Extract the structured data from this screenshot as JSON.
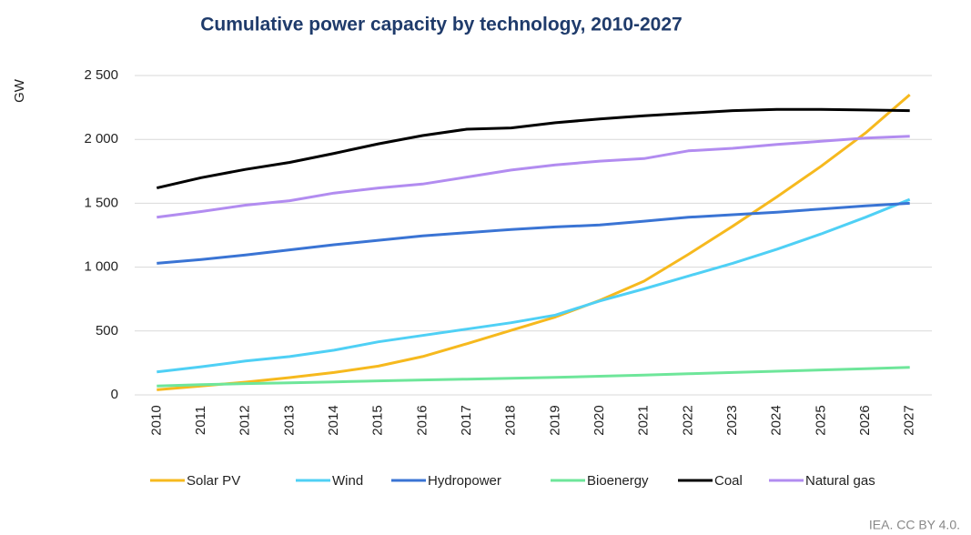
{
  "chart_data": {
    "type": "line",
    "title": "Cumulative power capacity by technology, 2010-2027",
    "y_label": "GW",
    "source": "IEA. CC BY 4.0.",
    "categories": [
      "2010",
      "2011",
      "2012",
      "2013",
      "2014",
      "2015",
      "2016",
      "2017",
      "2018",
      "2019",
      "2020",
      "2021",
      "2022",
      "2023",
      "2024",
      "2025",
      "2026",
      "2027"
    ],
    "ylim": [
      0,
      2500
    ],
    "yticks": [
      0,
      500,
      {
        "value": 1000,
        "label": "1 000"
      },
      {
        "value": 1500,
        "label": "1 500"
      },
      {
        "value": 2000,
        "label": "2 000"
      },
      {
        "value": 2500,
        "label": "2 500"
      }
    ],
    "grid": true,
    "legend": "bottom",
    "series": [
      {
        "name": "Solar PV",
        "color": "#f6b91e",
        "values": [
          40,
          70,
          100,
          135,
          175,
          225,
          300,
          400,
          505,
          610,
          740,
          890,
          1100,
          1320,
          1550,
          1790,
          2050,
          2350
        ]
      },
      {
        "name": "Wind",
        "color": "#4fd0f5",
        "values": [
          180,
          220,
          265,
          300,
          350,
          415,
          465,
          515,
          565,
          625,
          735,
          830,
          930,
          1030,
          1140,
          1260,
          1390,
          1530
        ]
      },
      {
        "name": "Hydropower",
        "color": "#3a74d4",
        "values": [
          1030,
          1060,
          1095,
          1135,
          1175,
          1210,
          1245,
          1270,
          1295,
          1315,
          1330,
          1360,
          1390,
          1410,
          1430,
          1455,
          1480,
          1500
        ]
      },
      {
        "name": "Bioenergy",
        "color": "#6ee69a",
        "values": [
          70,
          80,
          88,
          95,
          102,
          110,
          117,
          123,
          130,
          137,
          146,
          155,
          165,
          175,
          185,
          195,
          205,
          215
        ]
      },
      {
        "name": "Coal",
        "color": "#000000",
        "values": [
          1620,
          1700,
          1765,
          1820,
          1890,
          1965,
          2030,
          2080,
          2090,
          2130,
          2160,
          2185,
          2205,
          2225,
          2235,
          2235,
          2230,
          2225
        ]
      },
      {
        "name": "Natural gas",
        "color": "#b28cf0",
        "values": [
          1390,
          1435,
          1485,
          1520,
          1580,
          1620,
          1650,
          1705,
          1760,
          1800,
          1830,
          1850,
          1910,
          1930,
          1960,
          1985,
          2010,
          2025
        ]
      }
    ]
  }
}
